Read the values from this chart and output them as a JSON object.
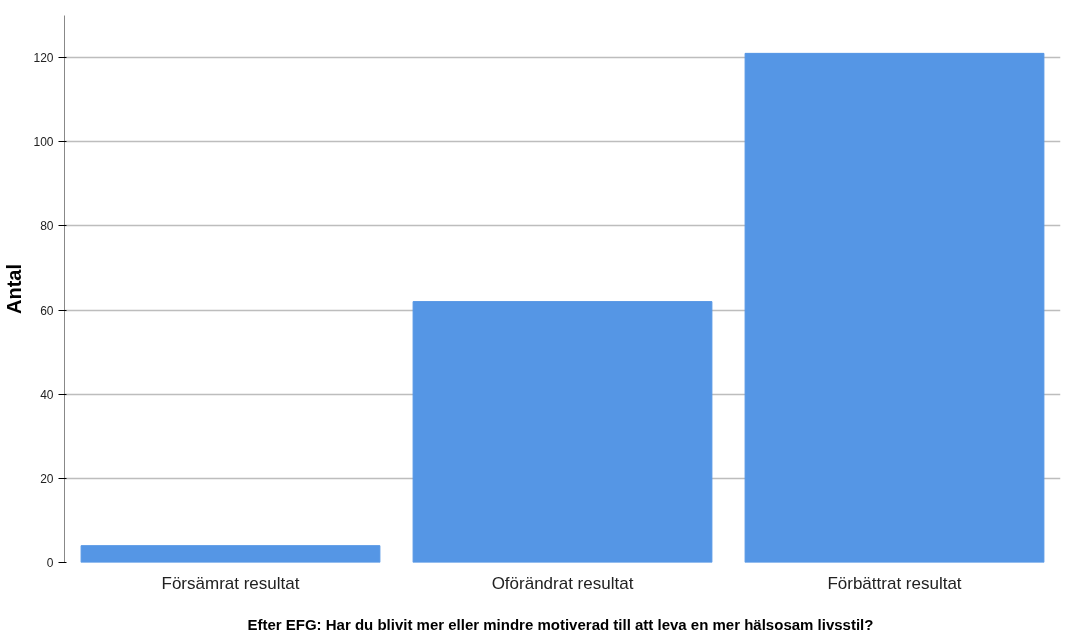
{
  "chart_data": {
    "type": "bar",
    "xlabel": "Efter EFG:  Har du blivit mer eller mindre motiverad till att leva en mer hälsosam livsstil?",
    "ylabel": "Antal",
    "categories": [
      "Försämrat resultat",
      "Oförändrat resultat",
      "Förbättrat resultat"
    ],
    "values": [
      4,
      62,
      121
    ],
    "color": "#5596e5",
    "ylim": [
      0,
      130
    ],
    "yticks": [
      0,
      20,
      40,
      60,
      80,
      100,
      120
    ],
    "grid": "y"
  }
}
